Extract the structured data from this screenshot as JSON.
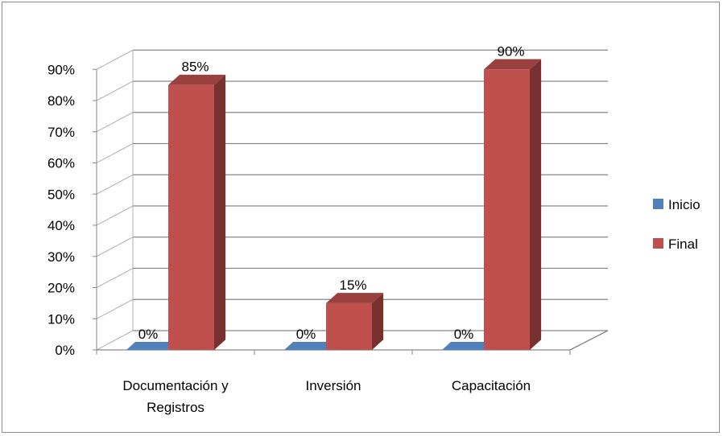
{
  "chart_data": {
    "type": "bar",
    "categories": [
      "Documentación y Registros",
      "Inversión",
      "Capacitación"
    ],
    "category_lines": [
      [
        "Documentación y",
        "Registros"
      ],
      [
        "Inversión"
      ],
      [
        "Capacitación"
      ]
    ],
    "series": [
      {
        "name": "Inicio",
        "values": [
          0,
          0,
          0
        ],
        "labels": [
          "0%",
          "0%",
          "0%"
        ]
      },
      {
        "name": "Final",
        "values": [
          85,
          15,
          90
        ],
        "labels": [
          "85%",
          "15%",
          "90%"
        ]
      }
    ],
    "yticks": [
      "0%",
      "10%",
      "20%",
      "30%",
      "40%",
      "50%",
      "60%",
      "70%",
      "80%",
      "90%"
    ],
    "ylim": [
      0,
      90
    ],
    "unit": "%",
    "grid": true,
    "legend_position": "right",
    "colors": {
      "Inicio": "#4f81bd",
      "Final": "#c0504d"
    }
  }
}
